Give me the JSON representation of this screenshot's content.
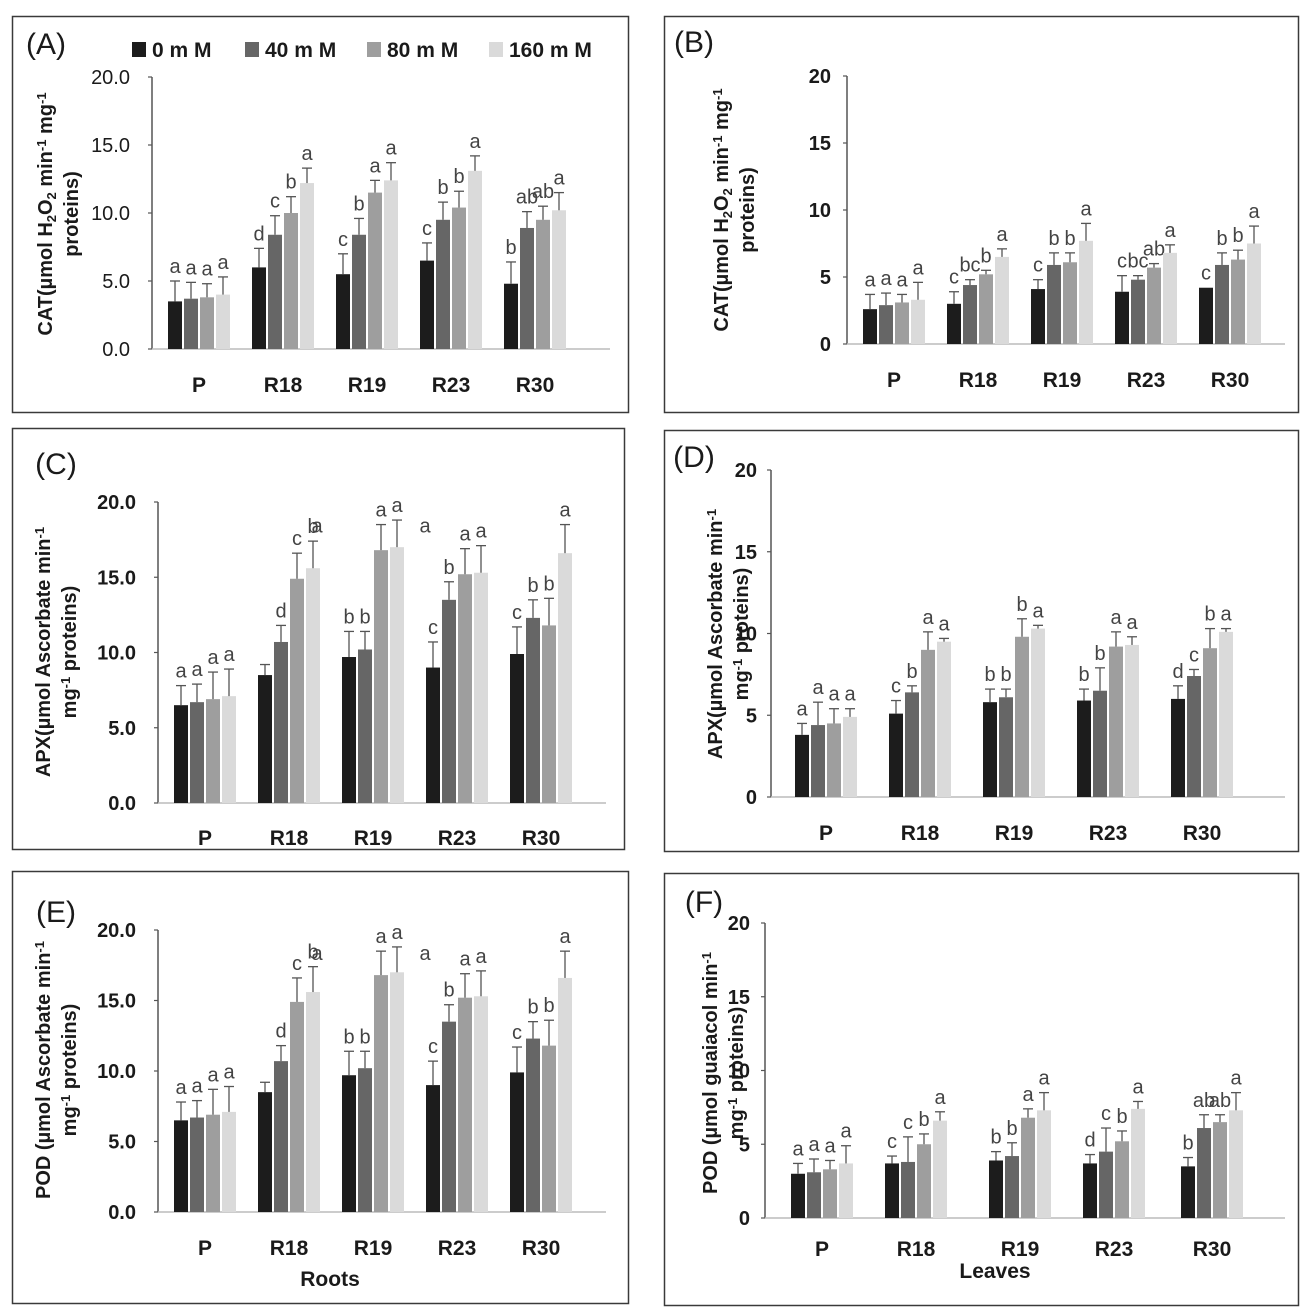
{
  "legend": {
    "items": [
      {
        "label": "0 m M",
        "color": "#1c1c1c"
      },
      {
        "label": "40 m M",
        "color": "#666666"
      },
      {
        "label": "80 m M",
        "color": "#9e9e9e"
      },
      {
        "label": "160 m M",
        "color": "#dadada"
      }
    ]
  },
  "colors": {
    "frame": "#3a3a3a",
    "axis": "#555555",
    "text": "#1a1a1a",
    "letters": "#444444"
  },
  "x_titles": {
    "roots": "Roots",
    "leaves": "Leaves"
  },
  "chart_data": [
    {
      "panel": "(A)",
      "type": "bar",
      "categories": [
        "P",
        "R18",
        "R19",
        "R23",
        "R30"
      ],
      "ylabel_lines": [
        [
          {
            "t": "CAT(µmol H"
          },
          {
            "t": "2",
            "sub": true
          },
          {
            "t": "O"
          },
          {
            "t": "2",
            "sub": true
          },
          {
            "t": " min"
          },
          {
            "t": "-1",
            "sup": true
          },
          {
            "t": " mg"
          },
          {
            "t": "-1",
            "sup": true
          }
        ],
        [
          {
            "t": "proteins)"
          }
        ]
      ],
      "ylim": [
        0,
        20
      ],
      "yticks": [
        0,
        5,
        10,
        15,
        20
      ],
      "tick_format": "0.0",
      "series": [
        {
          "name": "0 m M",
          "values": [
            3.5,
            6.0,
            5.5,
            6.5,
            4.8
          ],
          "errors": [
            1.5,
            1.4,
            1.5,
            1.3,
            1.6
          ],
          "letters": [
            "a",
            "d",
            "c",
            "c",
            "b"
          ]
        },
        {
          "name": "40 m M",
          "values": [
            3.7,
            8.4,
            8.4,
            9.5,
            8.9
          ],
          "errors": [
            1.2,
            1.4,
            1.2,
            1.3,
            1.2
          ],
          "letters": [
            "a",
            "c",
            "b",
            "b",
            "ab"
          ]
        },
        {
          "name": "80 m M",
          "values": [
            3.8,
            10.0,
            11.5,
            10.4,
            9.5
          ],
          "errors": [
            1.0,
            1.2,
            0.9,
            1.2,
            1.0
          ],
          "letters": [
            "a",
            "b",
            "a",
            "b",
            "ab"
          ]
        },
        {
          "name": "160 m M",
          "values": [
            4.0,
            12.2,
            12.4,
            13.1,
            10.2
          ],
          "errors": [
            1.3,
            1.1,
            1.3,
            1.1,
            1.3
          ],
          "letters": [
            "a",
            "a",
            "a",
            "a",
            "a"
          ]
        }
      ]
    },
    {
      "panel": "(B)",
      "type": "bar",
      "categories": [
        "P",
        "R18",
        "R19",
        "R23",
        "R30"
      ],
      "ylabel_lines": [
        [
          {
            "t": "CAT(µmol H"
          },
          {
            "t": "2",
            "sub": true
          },
          {
            "t": "O"
          },
          {
            "t": "2",
            "sub": true
          },
          {
            "t": " min"
          },
          {
            "t": "-1",
            "sup": true
          },
          {
            "t": " mg"
          },
          {
            "t": "-1",
            "sup": true
          }
        ],
        [
          {
            "t": "proteins)"
          }
        ]
      ],
      "ylim": [
        0,
        20
      ],
      "yticks": [
        0,
        5,
        10,
        15,
        20
      ],
      "tick_format": "0",
      "series": [
        {
          "name": "0 m M",
          "values": [
            2.6,
            3.0,
            4.1,
            3.9,
            4.2
          ],
          "errors": [
            1.1,
            0.9,
            0.7,
            1.2,
            0.0
          ],
          "letters": [
            "a",
            "c",
            "c",
            "c",
            "c"
          ]
        },
        {
          "name": "40 m M",
          "values": [
            2.9,
            4.4,
            5.9,
            4.8,
            5.9
          ],
          "errors": [
            0.9,
            0.4,
            0.9,
            0.3,
            0.9
          ],
          "letters": [
            "a",
            "bc",
            "b",
            "bc",
            "b"
          ]
        },
        {
          "name": "80 m M",
          "values": [
            3.1,
            5.2,
            6.1,
            5.7,
            6.3
          ],
          "errors": [
            0.6,
            0.3,
            0.7,
            0.3,
            0.7
          ],
          "letters": [
            "a",
            "b",
            "b",
            "ab",
            "b"
          ]
        },
        {
          "name": "160 m M",
          "values": [
            3.3,
            6.5,
            7.7,
            6.8,
            7.5
          ],
          "errors": [
            1.3,
            0.6,
            1.3,
            0.6,
            1.3
          ],
          "letters": [
            "a",
            "a",
            "a",
            "a",
            "a"
          ]
        }
      ]
    },
    {
      "panel": "(C)",
      "type": "bar",
      "categories": [
        "P",
        "R18",
        "R19",
        "R23",
        "R30"
      ],
      "ylabel_lines": [
        [
          {
            "t": "APX(µmol Ascorbate min"
          },
          {
            "t": "-1",
            "sup": true
          }
        ],
        [
          {
            "t": "mg"
          },
          {
            "t": "-1",
            "sup": true
          },
          {
            "t": " proteins)"
          }
        ]
      ],
      "ylim": [
        0,
        20
      ],
      "yticks": [
        0,
        5,
        10,
        15,
        20
      ],
      "tick_format": "0.0",
      "series": [
        {
          "name": "0 m M",
          "values": [
            6.5,
            8.5,
            9.7,
            9.0,
            9.9
          ],
          "errors": [
            1.3,
            0.7,
            1.7,
            1.7,
            1.8
          ],
          "letters": [
            "a",
            "",
            "b",
            "c",
            "c"
          ]
        },
        {
          "name": "40 m M",
          "values": [
            6.7,
            10.7,
            10.2,
            13.5,
            12.3
          ],
          "errors": [
            1.2,
            1.1,
            1.2,
            1.2,
            1.2
          ],
          "letters": [
            "a",
            "d",
            "b",
            "b",
            "b"
          ]
        },
        {
          "name": "80 m M",
          "values": [
            6.9,
            14.9,
            16.8,
            15.2,
            11.8
          ],
          "errors": [
            1.8,
            1.7,
            1.7,
            1.7,
            1.8
          ],
          "letters": [
            "a",
            "c",
            "a",
            "a",
            "b"
          ]
        },
        {
          "name": "160 m M",
          "values": [
            7.1,
            15.6,
            17.0,
            15.3,
            16.6
          ],
          "errors": [
            1.8,
            1.8,
            1.8,
            1.8,
            1.9
          ],
          "letters": [
            "a",
            "b",
            "a",
            "a",
            "a"
          ]
        }
      ],
      "extra_letters": [
        {
          "text": "a",
          "category": "R18",
          "value": 19.3
        },
        {
          "text": "a",
          "category": "R19",
          "value": 19.3,
          "offset": 1.3
        }
      ]
    },
    {
      "panel": "(D)",
      "type": "bar",
      "categories": [
        "P",
        "R18",
        "R19",
        "R23",
        "R30"
      ],
      "ylabel_lines": [
        [
          {
            "t": "APX(µmol Ascorbate min"
          },
          {
            "t": "-1",
            "sup": true
          }
        ],
        [
          {
            "t": "mg"
          },
          {
            "t": "-1",
            "sup": true
          },
          {
            "t": " proteins)"
          }
        ]
      ],
      "ylim": [
        0,
        20
      ],
      "yticks": [
        0,
        5,
        10,
        15,
        20
      ],
      "tick_format": "0",
      "series": [
        {
          "name": "0 m M",
          "values": [
            3.8,
            5.1,
            5.8,
            5.9,
            6.0
          ],
          "errors": [
            0.7,
            0.8,
            0.8,
            0.7,
            0.8
          ],
          "letters": [
            "a",
            "c",
            "b",
            "b",
            "d"
          ]
        },
        {
          "name": "40 m M",
          "values": [
            4.4,
            6.4,
            6.1,
            6.5,
            7.4
          ],
          "errors": [
            1.4,
            0.4,
            0.5,
            1.4,
            0.4
          ],
          "letters": [
            "a",
            "b",
            "b",
            "b",
            "c"
          ]
        },
        {
          "name": "80 m M",
          "values": [
            4.5,
            9.0,
            9.8,
            9.2,
            9.1
          ],
          "errors": [
            0.9,
            1.1,
            1.1,
            0.9,
            1.2
          ],
          "letters": [
            "a",
            "a",
            "b",
            "a",
            "b"
          ]
        },
        {
          "name": "160 m M",
          "values": [
            4.9,
            9.5,
            10.3,
            9.3,
            10.1
          ],
          "errors": [
            0.5,
            0.2,
            0.2,
            0.5,
            0.2
          ],
          "letters": [
            "a",
            "a",
            "a",
            "a",
            "a"
          ]
        }
      ]
    },
    {
      "panel": "(E)",
      "type": "bar",
      "categories": [
        "P",
        "R18",
        "R19",
        "R23",
        "R30"
      ],
      "ylabel_lines": [
        [
          {
            "t": "POD (µmol Ascorbate min"
          },
          {
            "t": "-1",
            "sup": true
          }
        ],
        [
          {
            "t": "mg"
          },
          {
            "t": "-1",
            "sup": true
          },
          {
            "t": " proteins)"
          }
        ]
      ],
      "ylim": [
        0,
        20
      ],
      "yticks": [
        0,
        5,
        10,
        15,
        20
      ],
      "tick_format": "0.0",
      "x_title_key": "roots",
      "series": [
        {
          "name": "0 m M",
          "values": [
            6.5,
            8.5,
            9.7,
            9.0,
            9.9
          ],
          "errors": [
            1.3,
            0.7,
            1.7,
            1.7,
            1.8
          ],
          "letters": [
            "a",
            "",
            "b",
            "c",
            "c"
          ]
        },
        {
          "name": "40 m M",
          "values": [
            6.7,
            10.7,
            10.2,
            13.5,
            12.3
          ],
          "errors": [
            1.2,
            1.1,
            1.2,
            1.2,
            1.2
          ],
          "letters": [
            "a",
            "d",
            "b",
            "b",
            "b"
          ]
        },
        {
          "name": "80 m M",
          "values": [
            6.9,
            14.9,
            16.8,
            15.2,
            11.8
          ],
          "errors": [
            1.8,
            1.7,
            1.7,
            1.7,
            1.8
          ],
          "letters": [
            "a",
            "c",
            "a",
            "a",
            "b"
          ]
        },
        {
          "name": "160 m M",
          "values": [
            7.1,
            15.6,
            17.0,
            15.3,
            16.6
          ],
          "errors": [
            1.8,
            1.8,
            1.8,
            1.8,
            1.9
          ],
          "letters": [
            "a",
            "b",
            "a",
            "a",
            "a"
          ]
        }
      ],
      "extra_letters": [
        {
          "text": "a",
          "category": "R18",
          "value": 19.3
        },
        {
          "text": "a",
          "category": "R19",
          "value": 19.3,
          "offset": 1.3
        }
      ]
    },
    {
      "panel": "(F)",
      "type": "bar",
      "categories": [
        "P",
        "R18",
        "R19",
        "R23",
        "R30"
      ],
      "ylabel_lines": [
        [
          {
            "t": "POD (µmol guaiacol min"
          },
          {
            "t": "-1",
            "sup": true
          }
        ],
        [
          {
            "t": "mg"
          },
          {
            "t": "-1",
            "sup": true
          },
          {
            "t": " proteins)"
          }
        ]
      ],
      "ylim": [
        0,
        20
      ],
      "yticks": [
        0,
        5,
        10,
        15,
        20
      ],
      "tick_format": "0",
      "x_title_key": "leaves",
      "series": [
        {
          "name": "0 m M",
          "values": [
            3.0,
            3.7,
            3.9,
            3.7,
            3.5
          ],
          "errors": [
            0.7,
            0.5,
            0.6,
            0.6,
            0.6
          ],
          "letters": [
            "a",
            "c",
            "b",
            "d",
            "b"
          ]
        },
        {
          "name": "40 m M",
          "values": [
            3.1,
            3.8,
            4.2,
            4.5,
            6.1
          ],
          "errors": [
            0.9,
            1.7,
            0.9,
            1.6,
            0.9
          ],
          "letters": [
            "a",
            "c",
            "b",
            "c",
            "ab"
          ]
        },
        {
          "name": "80 m M",
          "values": [
            3.3,
            5.0,
            6.8,
            5.2,
            6.5
          ],
          "errors": [
            0.6,
            0.7,
            0.6,
            0.7,
            0.5
          ],
          "letters": [
            "a",
            "b",
            "a",
            "b",
            "ab"
          ]
        },
        {
          "name": "160 m M",
          "values": [
            3.7,
            6.6,
            7.3,
            7.4,
            7.3
          ],
          "errors": [
            1.2,
            0.6,
            1.2,
            0.5,
            1.2
          ],
          "letters": [
            "a",
            "a",
            "a",
            "a",
            "a"
          ]
        }
      ]
    }
  ]
}
